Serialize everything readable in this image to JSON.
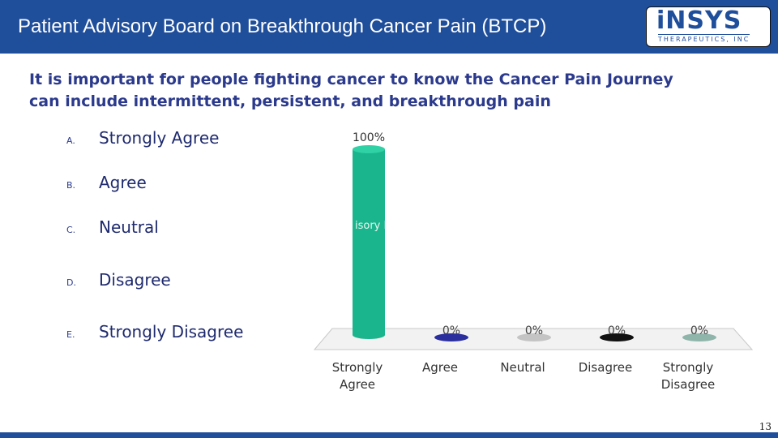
{
  "header": {
    "title": "Patient Advisory Board on Breakthrough Cancer Pain (BTCP)",
    "logo_main": "iNSYS",
    "logo_sub": "THERAPEUTICS, INC"
  },
  "question": "It is important for people fighting cancer to know the Cancer Pain Journey can include intermittent, persistent, and breakthrough pain",
  "options": [
    {
      "letter": "A.",
      "text": "Strongly Agree"
    },
    {
      "letter": "B.",
      "text": "Agree"
    },
    {
      "letter": "C.",
      "text": "Neutral"
    },
    {
      "letter": "D.",
      "text": "Disagree"
    },
    {
      "letter": "E.",
      "text": "Strongly Disagree"
    }
  ],
  "chart_data": {
    "type": "bar",
    "categories": [
      "Strongly Agree",
      "Agree",
      "Neutral",
      "Disagree",
      "Strongly Disagree"
    ],
    "category_lines": [
      [
        "Strongly",
        "Agree"
      ],
      [
        "Agree"
      ],
      [
        "Neutral"
      ],
      [
        "Disagree"
      ],
      [
        "Strongly",
        "Disagree"
      ]
    ],
    "values": [
      100,
      0,
      0,
      0,
      0
    ],
    "data_labels": [
      "100%",
      "0%",
      "0%",
      "0%",
      "0%"
    ],
    "colors": [
      "#1ab58c",
      "#2b2f9e",
      "#c4c4c4",
      "#111111",
      "#8fb5ab"
    ],
    "ylim": [
      0,
      100
    ],
    "overlay_text": "isory I"
  },
  "page_number": "13"
}
